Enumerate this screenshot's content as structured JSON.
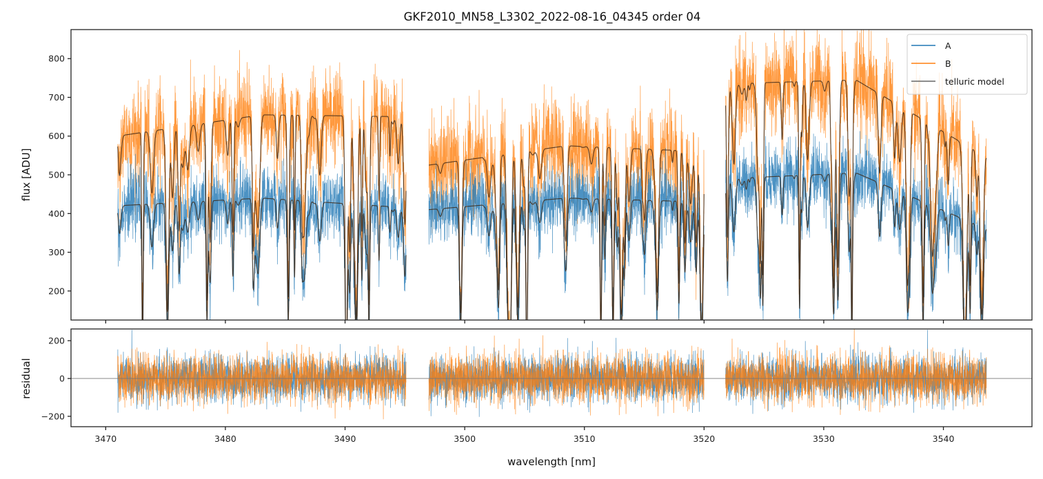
{
  "chart_data": {
    "type": "line",
    "title": "GKF2010_MN58_L3302_2022-08-16_04345  order 04",
    "xlabel": "wavelength [nm]",
    "xlim": [
      3467.1,
      3547.4
    ],
    "x_ticks": [
      3470,
      3480,
      3490,
      3500,
      3510,
      3520,
      3530,
      3540
    ],
    "x_tick_labels": [
      "3470",
      "3480",
      "3490",
      "3500",
      "3510",
      "3520",
      "3530",
      "3540"
    ],
    "segments_nm": [
      [
        3471.0,
        3495.1
      ],
      [
        3497.0,
        3520.0
      ],
      [
        3521.8,
        3543.6
      ]
    ],
    "colors": {
      "A": "#1f77b4",
      "B": "#ff7f0e",
      "telluric": "#3d2a1a",
      "zero_line": "#777777"
    },
    "panels": [
      {
        "name": "flux",
        "ylabel": "flux [ADU]",
        "ylim": [
          125,
          875
        ],
        "y_ticks": [
          200,
          300,
          400,
          500,
          600,
          700,
          800
        ],
        "y_tick_labels": [
          "200",
          "300",
          "400",
          "500",
          "600",
          "700",
          "800"
        ],
        "series": [
          {
            "name": "A",
            "continuum_by_segment": [
              [
                420,
                440,
                415
              ],
              [
                410,
                440,
                430
              ],
              [
                490,
                505,
                360
              ]
            ],
            "noise": 75
          },
          {
            "name": "B",
            "continuum_by_segment": [
              [
                600,
                655,
                650
              ],
              [
                525,
                575,
                560
              ],
              [
                735,
                745,
                545
              ]
            ],
            "noise": 110
          },
          {
            "name": "telluric model",
            "traces": [
              "A",
              "B"
            ]
          }
        ],
        "legend": {
          "position": "top-right",
          "entries": [
            "A",
            "B",
            "telluric model"
          ]
        }
      },
      {
        "name": "residual",
        "ylabel": "residual",
        "ylim": [
          -255,
          262
        ],
        "y_ticks": [
          -200,
          0,
          200
        ],
        "y_tick_labels": [
          "−200",
          "0",
          "200"
        ],
        "series": [
          {
            "name": "A",
            "amplitude": 80
          },
          {
            "name": "B",
            "amplitude": 85
          }
        ],
        "zero_line": 0
      }
    ]
  }
}
